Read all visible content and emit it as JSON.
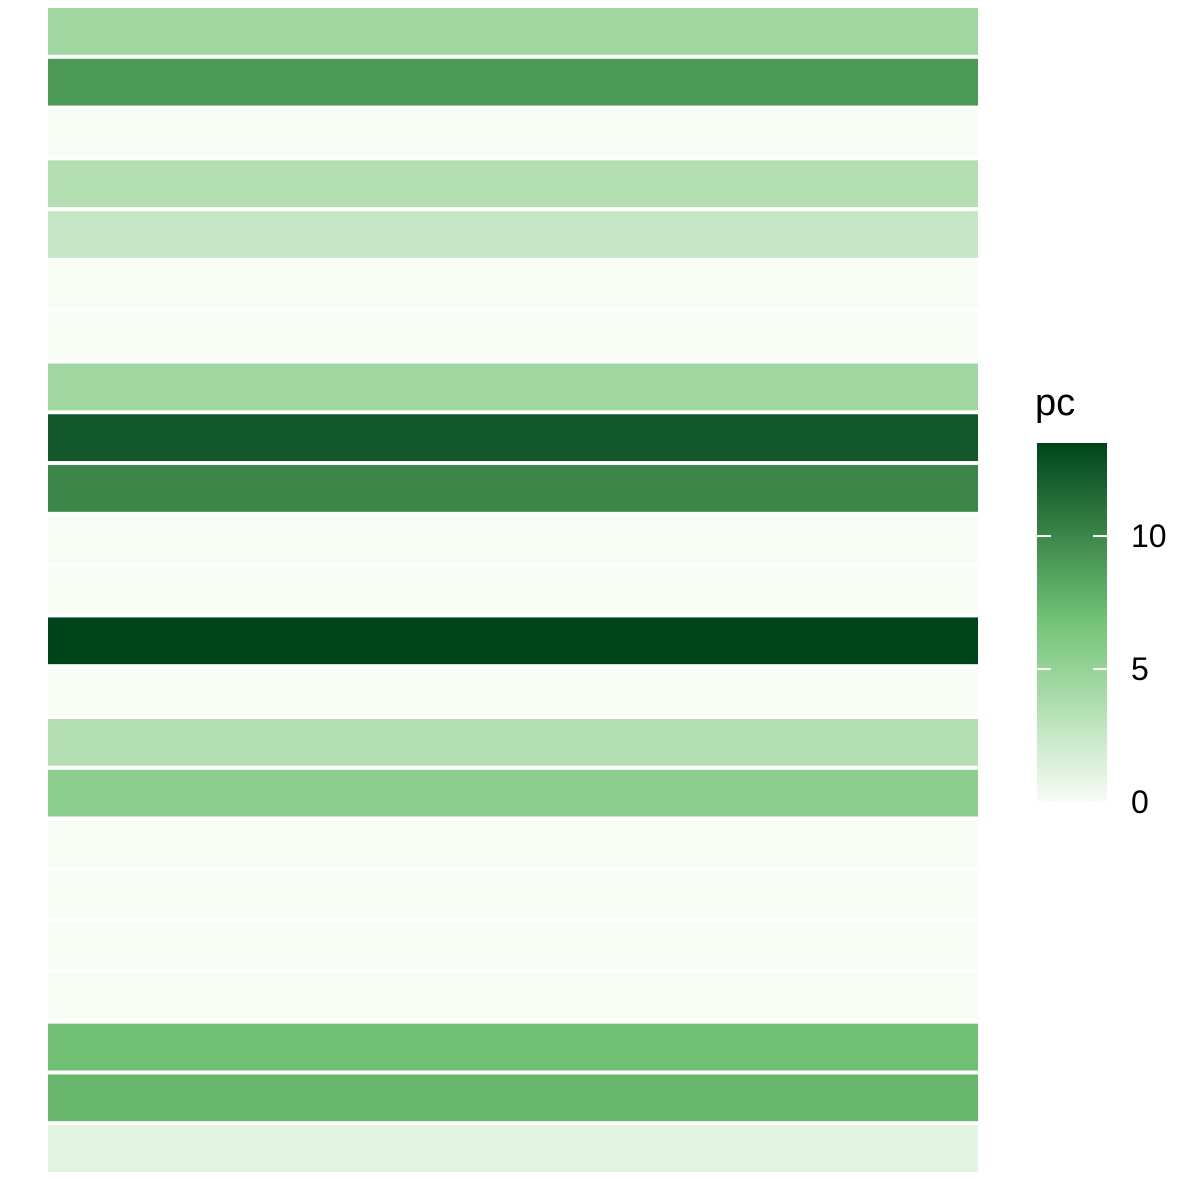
{
  "chart_data": {
    "type": "heatmap",
    "color_scale": {
      "low": "#f7fcf5",
      "mid": "#74c476",
      "high": "#00441b",
      "min": 0,
      "max": 13.5
    },
    "values": [
      4.5,
      9,
      0,
      3.5,
      2.5,
      0,
      0,
      4.5,
      12.5,
      10,
      0,
      0,
      13.5,
      0,
      3.5,
      5.5,
      0,
      0,
      0,
      0,
      7,
      7.5,
      1
    ],
    "legend": {
      "title": "pc",
      "placement": "right",
      "ticks": [
        {
          "value": 0,
          "label": "0"
        },
        {
          "value": 5,
          "label": "5"
        },
        {
          "value": 10,
          "label": "10"
        }
      ]
    }
  }
}
